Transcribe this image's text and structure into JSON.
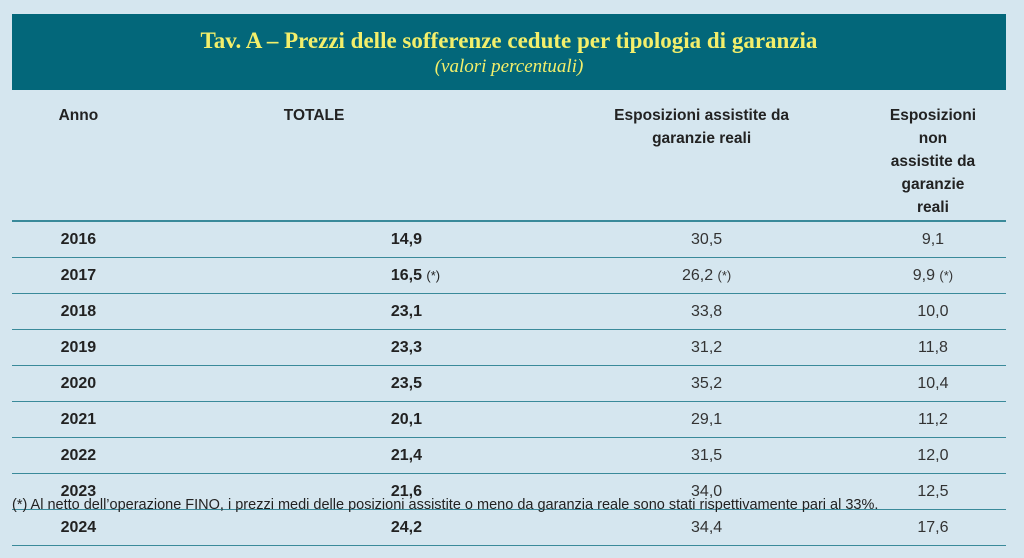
{
  "title": "Tav. A – Prezzi delle sofferenze cedute per tipologia di garanzia",
  "subtitle": "(valori percentuali)",
  "headers": [
    "Anno",
    "TOTALE",
    "Esposizioni assistite da garanzie reali",
    "Esposizioni non assistite da garanzie reali"
  ],
  "rows": [
    {
      "anno": "2016",
      "totale": "14,9",
      "t_note": "",
      "assistite": "30,5",
      "a_note": "",
      "non_assistite": "9,1",
      "n_note": ""
    },
    {
      "anno": "2017",
      "totale": "16,5",
      "t_note": "(*)",
      "assistite": "26,2",
      "a_note": "(*)",
      "non_assistite": "9,9",
      "n_note": "(*)"
    },
    {
      "anno": "2018",
      "totale": "23,1",
      "t_note": "",
      "assistite": "33,8",
      "a_note": "",
      "non_assistite": "10,0",
      "n_note": ""
    },
    {
      "anno": "2019",
      "totale": "23,3",
      "t_note": "",
      "assistite": "31,2",
      "a_note": "",
      "non_assistite": "11,8",
      "n_note": ""
    },
    {
      "anno": "2020",
      "totale": "23,5",
      "t_note": "",
      "assistite": "35,2",
      "a_note": "",
      "non_assistite": "10,4",
      "n_note": ""
    },
    {
      "anno": "2021",
      "totale": "20,1",
      "t_note": "",
      "assistite": "29,1",
      "a_note": "",
      "non_assistite": "11,2",
      "n_note": ""
    },
    {
      "anno": "2022",
      "totale": "21,4",
      "t_note": "",
      "assistite": "31,5",
      "a_note": "",
      "non_assistite": "12,0",
      "n_note": ""
    },
    {
      "anno": "2023",
      "totale": "21,6",
      "t_note": "",
      "assistite": "34,0",
      "a_note": "",
      "non_assistite": "12,5",
      "n_note": ""
    },
    {
      "anno": "2024",
      "totale": "24,2",
      "t_note": "",
      "assistite": "34,4",
      "a_note": "",
      "non_assistite": "17,6",
      "n_note": ""
    }
  ],
  "footnote": "(*) Al netto dell’operazione FINO, i prezzi medi delle posizioni assistite o meno da garanzia reale sono stati rispettivamente pari al 33%."
}
